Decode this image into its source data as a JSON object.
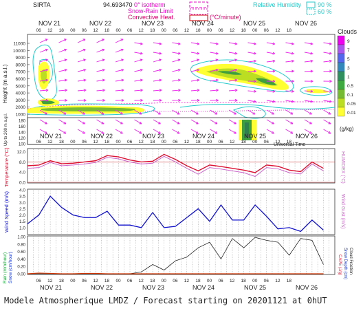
{
  "header": {
    "site": "SIRTA",
    "coords": "94.693470",
    "legend_isotherm": "0° isotherm",
    "legend_snow_rain": "Snow-Rain Limit",
    "legend_convective": "Convective Heat.",
    "legend_convective_unit": "(°C/minute)",
    "legend_rh": "Relative Humidity",
    "rh_90": "90 %",
    "rh_60": "60 %"
  },
  "time_axis": {
    "day_labels": [
      "NOV 21",
      "NOV 22",
      "NOV 23",
      "NOV 24",
      "NOV 25",
      "NOV 26"
    ],
    "hour_labels": [
      "06",
      "12",
      "18",
      "00",
      "06",
      "12",
      "18",
      "00",
      "06",
      "12",
      "18",
      "00",
      "06",
      "12",
      "18",
      "00",
      "06",
      "12",
      "18",
      "00",
      "06",
      "12",
      "18"
    ],
    "xlabel": "Universal Time"
  },
  "clouds": {
    "title": "Clouds",
    "unit": "(g/kg)",
    "levels": [
      "9",
      "7",
      "5",
      "3",
      "1",
      "0.5",
      "0.1",
      "0.05",
      "0.01"
    ],
    "colors": [
      "#ee00ee",
      "#aa55ee",
      "#5566ee",
      "#3388bb",
      "#2f8f5f",
      "#3faa3f",
      "#77bb33",
      "#bbdd22",
      "#ffff33"
    ]
  },
  "panels": {
    "height_ylabel": "Height (m a.s.l.)",
    "height_ticks": [
      "11000",
      "10000",
      "9000",
      "8000",
      "7000",
      "6000",
      "5000",
      "4000",
      "3000",
      "2000",
      "1000"
    ],
    "low_ylabel": "Up to 200 m a.g.l.",
    "low_ticks": [
      "180",
      "160",
      "140",
      "120",
      "100"
    ],
    "temp_ylabel": "Temperature (°C)",
    "temp_right_label": "HUMIDEX (°C)",
    "temp_ticks": [
      "12.0",
      "8.0",
      "4.0",
      "0.0"
    ],
    "wind_ylabel": "Wind Speed (m/s)",
    "wind_right_label": "Wind Gust (m/s)",
    "wind_ticks": [
      "4.0",
      "3.5",
      "3.0",
      "2.5",
      "2.0",
      "1.5",
      "1.0"
    ],
    "rain_ylabel": "Rain (mm/hour)",
    "snow_ylabel": "Snow (cm/hour)",
    "rain_ticks": [
      "1.00",
      "0.80",
      "0.60",
      "0.40",
      "0.20",
      "0.00"
    ],
    "right_label_cape": "CAPE (J/g)",
    "right_label_snowdepth": "Snow Depth (cm)",
    "right_label_cloudfrac": "Cloud Fraction"
  },
  "chart_data": [
    {
      "type": "line",
      "title": "Temperature",
      "x_unit": "hours since 2020-11-21 00UT",
      "x": [
        0,
        6,
        12,
        18,
        24,
        30,
        36,
        42,
        48,
        54,
        60,
        66,
        72,
        78,
        84,
        90,
        96,
        102,
        108,
        114,
        120,
        126,
        132,
        138,
        144,
        150,
        156
      ],
      "series": [
        {
          "name": "Temperature",
          "color": "#dd1133",
          "values": [
            6.5,
            6.8,
            8.5,
            7.3,
            7.5,
            8.0,
            8.5,
            10.5,
            10.0,
            8.8,
            8.0,
            8.3,
            11.0,
            9.0,
            6.5,
            4.5,
            6.8,
            6.2,
            5.5,
            4.8,
            3.8,
            6.8,
            6.3,
            4.8,
            4.2,
            8.0,
            5.5
          ]
        },
        {
          "name": "HUMIDEX",
          "color": "#cc66cc",
          "values": [
            5.5,
            5.8,
            7.8,
            6.5,
            6.8,
            7.2,
            7.8,
            9.8,
            9.2,
            8.0,
            7.2,
            7.5,
            10.2,
            8.0,
            5.5,
            3.2,
            5.8,
            5.2,
            4.5,
            3.8,
            2.3,
            5.8,
            5.3,
            3.8,
            3.3,
            7.2,
            4.5
          ]
        }
      ],
      "ylim": [
        0,
        13
      ],
      "reference_lines": [
        8.0,
        0.0
      ]
    },
    {
      "type": "line",
      "title": "Wind Speed",
      "x_unit": "hours since 2020-11-21 00UT",
      "x": [
        0,
        6,
        12,
        18,
        24,
        30,
        36,
        42,
        48,
        54,
        60,
        66,
        72,
        78,
        84,
        90,
        96,
        102,
        108,
        114,
        120,
        126,
        132,
        138,
        144,
        150,
        156
      ],
      "series": [
        {
          "name": "Wind Speed",
          "color": "#1111cc",
          "values": [
            1.3,
            2.0,
            3.5,
            2.6,
            2.0,
            1.8,
            1.8,
            2.3,
            1.2,
            1.2,
            1.0,
            2.2,
            1.0,
            1.1,
            1.8,
            2.5,
            1.5,
            2.8,
            1.6,
            1.6,
            2.8,
            1.9,
            0.9,
            1.0,
            0.7,
            1.6,
            0.8
          ]
        }
      ],
      "ylim": [
        0.5,
        4.0
      ]
    },
    {
      "type": "line",
      "title": "Rain / Cloud Fraction",
      "x_unit": "hours since 2020-11-21 00UT",
      "x": [
        0,
        6,
        12,
        18,
        24,
        30,
        36,
        42,
        48,
        54,
        60,
        66,
        72,
        78,
        84,
        90,
        96,
        102,
        108,
        114,
        120,
        126,
        132,
        138,
        144,
        150,
        156
      ],
      "series": [
        {
          "name": "Cloud Fraction",
          "color": "#222222",
          "values": [
            0,
            0,
            0,
            0,
            0,
            0,
            0,
            0,
            0,
            0,
            0.05,
            0.25,
            0.1,
            0.35,
            0.45,
            0.7,
            0.85,
            0.4,
            0.95,
            0.7,
            0.98,
            0.9,
            0.85,
            0.5,
            0.95,
            0.9,
            0.25
          ]
        },
        {
          "name": "Rain",
          "color": "#cc3300",
          "values": [
            0,
            0.02,
            0.01,
            0,
            0,
            0.01,
            0.01,
            0,
            0,
            0,
            0,
            0,
            0,
            0,
            0,
            0,
            0,
            0,
            0,
            0,
            0,
            0,
            0,
            0,
            0,
            0,
            0
          ]
        }
      ],
      "ylim": [
        0,
        1.0
      ]
    }
  ],
  "footer": {
    "text": "Modele Atmospherique LMDZ / Forecast starting on 20201121 at 0hUT"
  }
}
